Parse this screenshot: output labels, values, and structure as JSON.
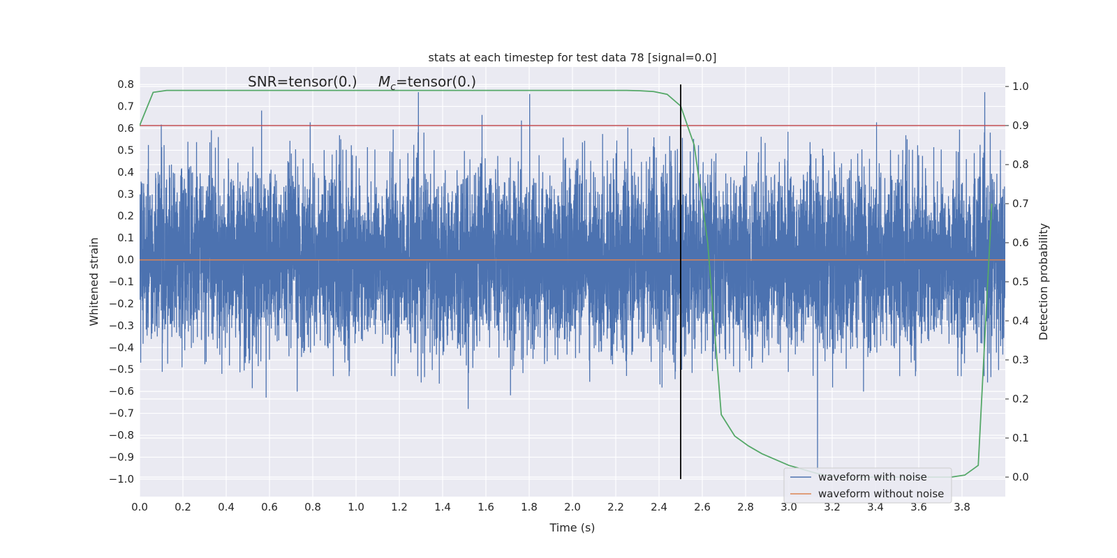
{
  "chart_data": {
    "type": "line",
    "title": "stats at each timestep for test data 78 [signal=0.0]",
    "xlabel": "Time (s)",
    "ylabel": "Whitened strain",
    "y2label": "Detection probability",
    "xlim": [
      0.0,
      4.0
    ],
    "ylim": [
      -1.08,
      0.88
    ],
    "y2lim": [
      -0.05,
      1.05
    ],
    "xticks": [
      0.0,
      0.2,
      0.4,
      0.6,
      0.8,
      1.0,
      1.2,
      1.4,
      1.6,
      1.8,
      2.0,
      2.2,
      2.4,
      2.6,
      2.8,
      3.0,
      3.2,
      3.4,
      3.6,
      3.8
    ],
    "yticks": [
      -1.0,
      -0.9,
      -0.8,
      -0.7,
      -0.6,
      -0.5,
      -0.4,
      -0.3,
      -0.2,
      -0.1,
      0.0,
      0.1,
      0.2,
      0.3,
      0.4,
      0.5,
      0.6,
      0.7,
      0.8
    ],
    "y2ticks": [
      0.0,
      0.1,
      0.2,
      0.3,
      0.4,
      0.5,
      0.6,
      0.7,
      0.8,
      0.9,
      1.0
    ],
    "grid": true,
    "legend_position": "lower-right",
    "annotation": {
      "snr_text": "SNR=tensor(0.)",
      "mc_symbol": "M",
      "mc_subscript": "c",
      "mc_value": "=tensor(0.)"
    },
    "series": [
      {
        "name": "waveform with noise",
        "axis": "left",
        "color": "#4c72b0",
        "noise_std": 0.2,
        "x_range": [
          0.0,
          4.0
        ],
        "samples": 8000,
        "note_values": "dense random noise, approx. range -1.0 to 0.8"
      },
      {
        "name": "waveform without noise",
        "axis": "left",
        "color": "#dd8452",
        "x": [
          0.0,
          4.0
        ],
        "y": [
          0.0,
          0.0
        ]
      },
      {
        "axis": "right",
        "color": "#55a868",
        "x": [
          0.0,
          0.0625,
          0.125,
          0.1875,
          0.25,
          0.5,
          1.0,
          1.5,
          2.0,
          2.25,
          2.3125,
          2.375,
          2.4375,
          2.5,
          2.5625,
          2.625,
          2.6875,
          2.75,
          2.8125,
          2.875,
          2.9375,
          3.0,
          3.0625,
          3.125,
          3.1875,
          3.25,
          3.5,
          3.75,
          3.8125,
          3.875,
          3.9375
        ],
        "y": [
          0.9,
          0.985,
          0.99,
          0.99,
          0.99,
          0.99,
          0.99,
          0.99,
          0.99,
          0.99,
          0.989,
          0.987,
          0.98,
          0.95,
          0.85,
          0.6,
          0.16,
          0.105,
          0.08,
          0.06,
          0.045,
          0.03,
          0.02,
          0.01,
          0.003,
          0.0,
          0.0,
          0.0,
          0.005,
          0.03,
          0.7
        ]
      },
      {
        "axis": "right",
        "color": "#c44e52",
        "type": "hline",
        "y": 0.9
      },
      {
        "axis": "left",
        "color": "#000000",
        "type": "vline",
        "x": 2.5,
        "y_range": [
          -1.0,
          0.8
        ]
      }
    ]
  }
}
